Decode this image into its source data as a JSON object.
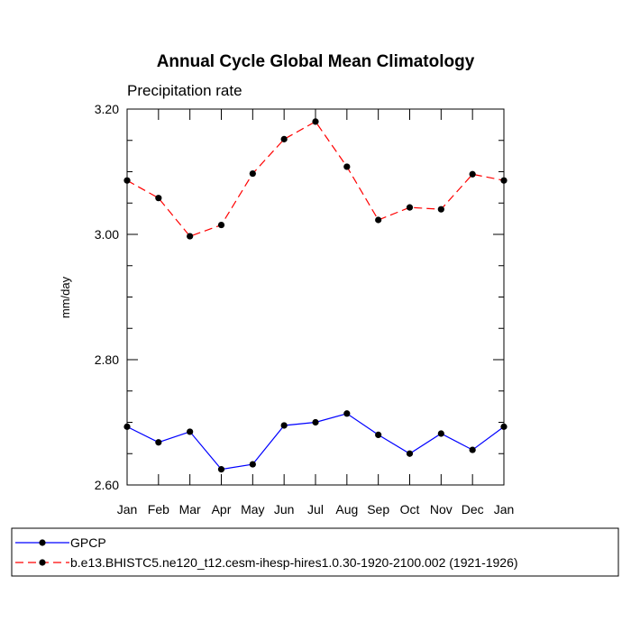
{
  "chart_data": {
    "type": "line",
    "title": "Annual Cycle Global Mean Climatology",
    "subtitle": "Precipitation rate",
    "xlabel": "",
    "ylabel": "mm/day",
    "categories": [
      "Jan",
      "Feb",
      "Mar",
      "Apr",
      "May",
      "Jun",
      "Jul",
      "Aug",
      "Sep",
      "Oct",
      "Nov",
      "Dec",
      "Jan"
    ],
    "ylim": [
      2.6,
      3.2
    ],
    "yticks": [
      2.6,
      2.8,
      3.0,
      3.2
    ],
    "ytick_labels": [
      "2.60",
      "2.80",
      "3.00",
      "3.20"
    ],
    "grid": false,
    "legend_position": "bottom",
    "series": [
      {
        "name": "GPCP",
        "color": "#0000ff",
        "line_style": "solid",
        "marker": "circle",
        "values": [
          2.693,
          2.668,
          2.685,
          2.625,
          2.633,
          2.695,
          2.7,
          2.714,
          2.68,
          2.65,
          2.682,
          2.656,
          2.693
        ]
      },
      {
        "name": "b.e13.BHISTC5.ne120_t12.cesm-ihesp-hires1.0.30-1920-2100.002 (1921-1926)",
        "color": "#ff0000",
        "line_style": "dashed",
        "marker": "circle",
        "values": [
          3.086,
          3.058,
          2.997,
          3.015,
          3.097,
          3.152,
          3.18,
          3.108,
          3.023,
          3.043,
          3.04,
          3.096,
          3.086
        ]
      }
    ]
  }
}
